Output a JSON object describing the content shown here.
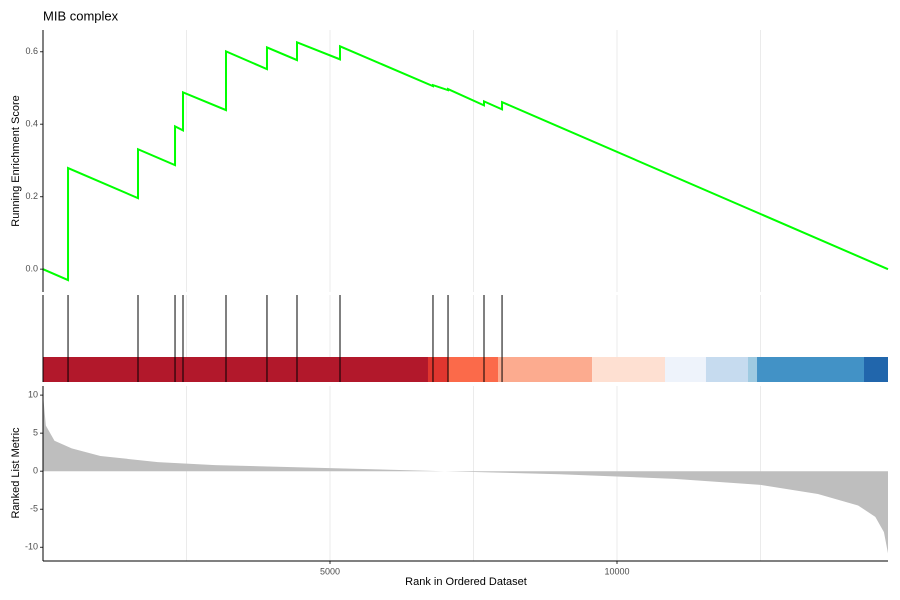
{
  "chart_data": [
    {
      "type": "line",
      "title": "MIB complex",
      "y_label": "Running Enrichment Score",
      "color": "#00ff00",
      "x": [
        0,
        436,
        436,
        1655,
        1655,
        2300,
        2300,
        2439,
        2439,
        3188,
        3188,
        3902,
        3902,
        4425,
        4425,
        5174,
        5174,
        6794,
        6794,
        7056,
        7056,
        7683,
        7683,
        7997,
        7997,
        14721
      ],
      "values": [
        0,
        -0.03,
        0.279,
        0.196,
        0.331,
        0.287,
        0.394,
        0.383,
        0.488,
        0.439,
        0.601,
        0.552,
        0.612,
        0.577,
        0.626,
        0.579,
        0.615,
        0.505,
        0.508,
        0.494,
        0.497,
        0.452,
        0.463,
        0.441,
        0.461,
        0
      ],
      "xlim": [
        0,
        14721
      ],
      "ylim": [
        -0.063,
        0.66
      ],
      "yticks": [
        {
          "value": 0,
          "label": "0.0"
        },
        0.2,
        0.4,
        0.6
      ],
      "xgrid": [
        2500,
        5000,
        7500,
        10000,
        12500
      ]
    },
    {
      "type": "barcode",
      "hits": [
        436,
        1655,
        2300,
        2439,
        3188,
        3902,
        4425,
        5174,
        6794,
        7056,
        7683,
        7997
      ],
      "band_edges": [
        0,
        6707,
        7056,
        7927,
        9565,
        10836,
        11550,
        12282,
        12439,
        14303,
        14721
      ],
      "band_colors": [
        "#b2182b",
        "#e0362f",
        "#fb6a4a",
        "#fcab8f",
        "#fee0d2",
        "#eef3fb",
        "#c6dbef",
        "#9ecae1",
        "#4292c6",
        "#2166ac"
      ],
      "xlim": [
        0,
        14721
      ],
      "xgrid": [
        2500,
        5000,
        7500,
        10000,
        12500
      ]
    },
    {
      "type": "area",
      "y_label": "Ranked List Metric",
      "x_label": "Rank in Ordered Dataset",
      "color": "#bebebe",
      "x": [
        0,
        50,
        200,
        500,
        1000,
        2000,
        3000,
        5000,
        7000,
        9000,
        11000,
        12500,
        13500,
        14200,
        14500,
        14650,
        14721
      ],
      "values": [
        10,
        6,
        4,
        3,
        2,
        1.2,
        0.8,
        0.4,
        0,
        -0.4,
        -1,
        -1.8,
        -3,
        -4.5,
        -6,
        -8,
        -10.8
      ],
      "xlim": [
        0,
        14721
      ],
      "ylim": [
        -11.8,
        11.2
      ],
      "yticks": [
        10,
        5,
        0,
        -5,
        -10
      ],
      "xticks": [
        5000,
        10000
      ],
      "xgrid": [
        2500,
        5000,
        7500,
        10000,
        12500
      ]
    }
  ]
}
